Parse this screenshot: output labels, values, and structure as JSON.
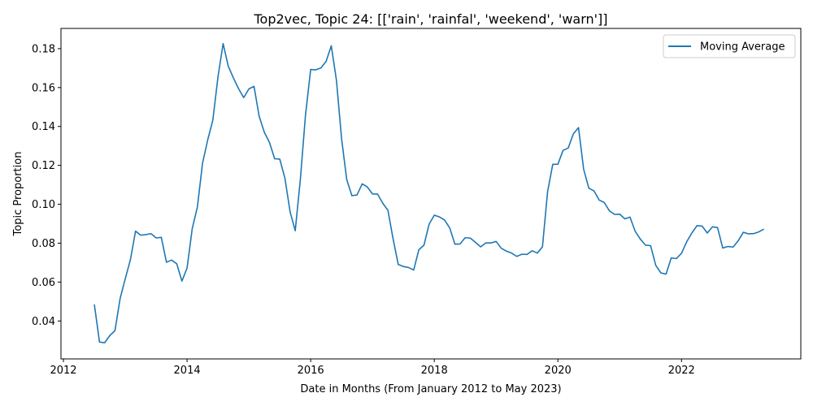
{
  "chart_data": {
    "type": "line",
    "title": "Top2vec, Topic 24: [['rain', 'rainfal', 'weekend', 'warn']]",
    "xlabel": "Date in Months (From January 2012 to May 2023)",
    "ylabel": "Topic Proportion",
    "xlim": [
      2011.96,
      2023.93
    ],
    "ylim": [
      0.0205,
      0.1904
    ],
    "x_ticks": [
      2012,
      2014,
      2016,
      2018,
      2020,
      2022
    ],
    "x_tick_labels": [
      "2012",
      "2014",
      "2016",
      "2018",
      "2020",
      "2022"
    ],
    "y_ticks": [
      0.04,
      0.06,
      0.08,
      0.1,
      0.12,
      0.14,
      0.16,
      0.18
    ],
    "y_tick_labels": [
      "0.04",
      "0.06",
      "0.08",
      "0.10",
      "0.12",
      "0.14",
      "0.16",
      "0.18"
    ],
    "grid": false,
    "legend": {
      "position": "top-right",
      "entries": [
        "Moving Average"
      ]
    },
    "color": "#1f77b4",
    "series": [
      {
        "name": "Moving Average",
        "x": [
          "2012-07",
          "2012-08",
          "2012-09",
          "2012-10",
          "2012-11",
          "2012-12",
          "2013-01",
          "2013-02",
          "2013-03",
          "2013-04",
          "2013-05",
          "2013-06",
          "2013-07",
          "2013-08",
          "2013-09",
          "2013-10",
          "2013-11",
          "2013-12",
          "2014-01",
          "2014-02",
          "2014-03",
          "2014-04",
          "2014-05",
          "2014-06",
          "2014-07",
          "2014-08",
          "2014-09",
          "2014-10",
          "2014-11",
          "2014-12",
          "2015-01",
          "2015-02",
          "2015-03",
          "2015-04",
          "2015-05",
          "2015-06",
          "2015-07",
          "2015-08",
          "2015-09",
          "2015-10",
          "2015-11",
          "2015-12",
          "2016-01",
          "2016-02",
          "2016-03",
          "2016-04",
          "2016-05",
          "2016-06",
          "2016-07",
          "2016-08",
          "2016-09",
          "2016-10",
          "2016-11",
          "2016-12",
          "2017-01",
          "2017-02",
          "2017-03",
          "2017-04",
          "2017-05",
          "2017-06",
          "2017-07",
          "2017-08",
          "2017-09",
          "2017-10",
          "2017-11",
          "2017-12",
          "2018-01",
          "2018-02",
          "2018-03",
          "2018-04",
          "2018-05",
          "2018-06",
          "2018-07",
          "2018-08",
          "2018-09",
          "2018-10",
          "2018-11",
          "2018-12",
          "2019-01",
          "2019-02",
          "2019-03",
          "2019-04",
          "2019-05",
          "2019-06",
          "2019-07",
          "2019-08",
          "2019-09",
          "2019-10",
          "2019-11",
          "2019-12",
          "2020-01",
          "2020-02",
          "2020-03",
          "2020-04",
          "2020-05",
          "2020-06",
          "2020-07",
          "2020-08",
          "2020-09",
          "2020-10",
          "2020-11",
          "2020-12",
          "2021-01",
          "2021-02",
          "2021-03",
          "2021-04",
          "2021-05",
          "2021-06",
          "2021-07",
          "2021-08",
          "2021-09",
          "2021-10",
          "2021-11",
          "2021-12",
          "2022-01",
          "2022-02",
          "2022-03",
          "2022-04",
          "2022-05",
          "2022-06",
          "2022-07",
          "2022-08",
          "2022-09",
          "2022-10",
          "2022-11",
          "2022-12",
          "2023-01",
          "2023-02",
          "2023-03",
          "2023-04",
          "2023-05"
        ],
        "values": [
          0.0485,
          0.0292,
          0.0288,
          0.0325,
          0.035,
          0.0515,
          0.0617,
          0.0715,
          0.0862,
          0.0841,
          0.0844,
          0.0849,
          0.0827,
          0.083,
          0.0702,
          0.0713,
          0.0694,
          0.0605,
          0.0672,
          0.0874,
          0.0985,
          0.121,
          0.133,
          0.1432,
          0.1654,
          0.1826,
          0.171,
          0.1649,
          0.1594,
          0.1548,
          0.1593,
          0.1606,
          0.1452,
          0.137,
          0.1318,
          0.1234,
          0.1232,
          0.1134,
          0.0962,
          0.0864,
          0.1129,
          0.146,
          0.1693,
          0.1691,
          0.1701,
          0.1735,
          0.1815,
          0.1638,
          0.1337,
          0.1127,
          0.1044,
          0.1048,
          0.1105,
          0.1089,
          0.1053,
          0.1052,
          0.1005,
          0.0969,
          0.0822,
          0.0691,
          0.068,
          0.0675,
          0.0662,
          0.0766,
          0.079,
          0.0898,
          0.0944,
          0.0935,
          0.0919,
          0.0878,
          0.0795,
          0.0796,
          0.0828,
          0.0826,
          0.0804,
          0.0781,
          0.0801,
          0.0801,
          0.0809,
          0.0774,
          0.0759,
          0.0749,
          0.0732,
          0.0743,
          0.0742,
          0.0761,
          0.0749,
          0.0781,
          0.1065,
          0.1205,
          0.1206,
          0.1277,
          0.1289,
          0.1362,
          0.1394,
          0.118,
          0.1083,
          0.1069,
          0.1022,
          0.1009,
          0.0966,
          0.0948,
          0.0949,
          0.0925,
          0.0934,
          0.0861,
          0.0821,
          0.079,
          0.0787,
          0.0686,
          0.0647,
          0.0641,
          0.0724,
          0.0721,
          0.0748,
          0.0807,
          0.0852,
          0.089,
          0.0888,
          0.0852,
          0.0884,
          0.088,
          0.0775,
          0.0783,
          0.078,
          0.0812,
          0.0856,
          0.0848,
          0.0849,
          0.0858,
          0.0872
        ]
      }
    ]
  }
}
